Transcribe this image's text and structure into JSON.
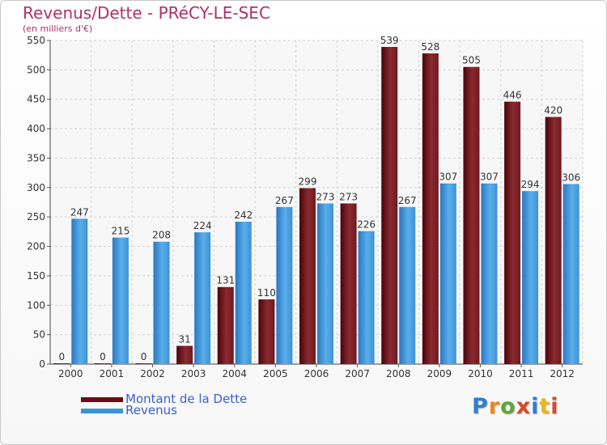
{
  "title": "Revenus/Dette - PRéCY-LE-SEC",
  "subtitle": "(en milliers d'€)",
  "logo": {
    "text": "Proxiti",
    "letter_colors": [
      "#2f7fd0",
      "#e88a1c",
      "#5da835",
      "#d84a2a",
      "#2f7fd0",
      "#e8b61c",
      "#d84a2a"
    ]
  },
  "legend": [
    {
      "label": "Montant de la Dette",
      "color": "#6b0d14"
    },
    {
      "label": "Revenus",
      "color": "#3b94d9"
    }
  ],
  "chart_data": {
    "type": "bar",
    "categories": [
      "2000",
      "2001",
      "2002",
      "2003",
      "2004",
      "2005",
      "2006",
      "2007",
      "2008",
      "2009",
      "2010",
      "2011",
      "2012"
    ],
    "series": [
      {
        "name": "Montant de la Dette",
        "color": "#7a1a22",
        "values": [
          0,
          0,
          0,
          31,
          131,
          110,
          299,
          273,
          539,
          528,
          505,
          446,
          420
        ]
      },
      {
        "name": "Revenus",
        "color": "#3b94d9",
        "values": [
          247,
          215,
          208,
          224,
          242,
          267,
          273,
          226,
          267,
          307,
          307,
          294,
          306
        ]
      }
    ],
    "ylim": [
      0,
      550
    ],
    "yticks": [
      0,
      50,
      100,
      150,
      200,
      250,
      300,
      350,
      400,
      450,
      500,
      550
    ],
    "grid": true,
    "legend_position": "bottom-left"
  }
}
